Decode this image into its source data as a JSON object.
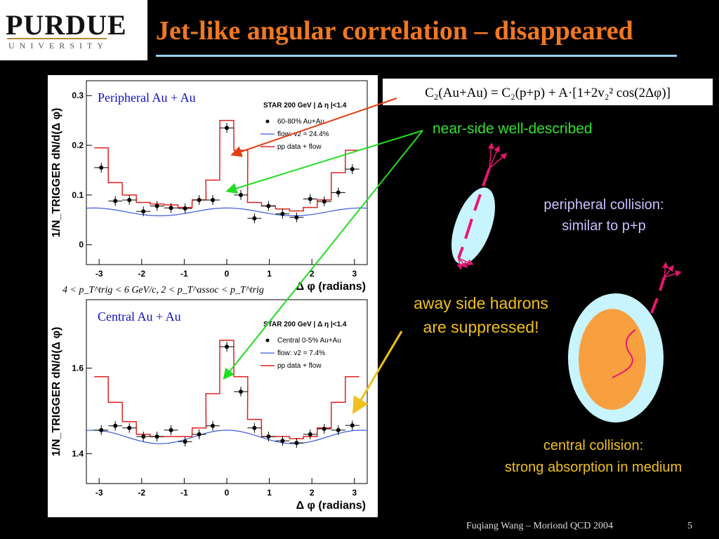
{
  "logo": {
    "main": "PURDUE",
    "sub": "UNIVERSITY"
  },
  "title": "Jet-like angular correlation – disappeared",
  "formula": "C₂(Au+Au) = C₂(p+p) + A·[1+2v₂² cos(2Δφ)]",
  "annotations": {
    "near_side": "near-side well-described",
    "peripheral_1": "peripheral collision:",
    "peripheral_2": "similar to p+p",
    "away_1": "away side hadrons",
    "away_2": "are suppressed!",
    "central_1": "central collision:",
    "central_2": "strong absorption in medium"
  },
  "footer": {
    "author": "Fuqiang Wang – Moriond QCD 2004",
    "page": "5"
  },
  "colors": {
    "title": "#f07820",
    "data": "#000000",
    "flow": "#3a5ad8",
    "pp": "#e02020",
    "near_arrow": "#22dd22",
    "away_arrow": "#f0c020",
    "formula_arrow": "#e04010"
  },
  "chart_data": [
    {
      "type": "scatter",
      "title": "Peripheral Au + Au",
      "xlabel": "Δ φ (radians)",
      "ylabel": "1/N_TRIGGER dN/d(Δ φ)",
      "xlim": [
        -3.3,
        3.3
      ],
      "ylim": [
        -0.04,
        0.33
      ],
      "xticks": [
        -3,
        -2,
        -1,
        0,
        1,
        2,
        3
      ],
      "yticks": [
        0,
        0.1,
        0.2,
        0.3
      ],
      "legend": {
        "position": "top-right",
        "header": "STAR 200 GeV | Δ η |<1.4",
        "entries": [
          "60-80% Au+Au",
          "flow: v2 = 24.4%",
          "pp data + flow"
        ]
      },
      "cut_label": "4 < p_T^trig < 6 GeV/c, 2 < p_T^assoc < p_T^trig",
      "series": [
        {
          "name": "60-80% Au+Au",
          "x": [
            -2.95,
            -2.62,
            -2.29,
            -1.96,
            -1.64,
            -1.31,
            -0.98,
            -0.65,
            -0.33,
            0.0,
            0.33,
            0.65,
            0.98,
            1.31,
            1.64,
            1.96,
            2.29,
            2.62,
            2.95
          ],
          "y": [
            0.155,
            0.088,
            0.09,
            0.067,
            0.078,
            0.074,
            0.073,
            0.09,
            0.09,
            0.235,
            0.1,
            0.053,
            0.078,
            0.062,
            0.055,
            0.092,
            0.087,
            0.105,
            0.152
          ]
        },
        {
          "name": "flow: v2 = 24.4%",
          "v2": 0.244,
          "baseline": 0.066
        },
        {
          "name": "pp data + flow",
          "y": [
            0.195,
            0.125,
            0.1,
            0.085,
            0.082,
            0.08,
            0.075,
            0.09,
            0.13,
            0.25,
            0.19,
            0.085,
            0.078,
            0.072,
            0.068,
            0.075,
            0.09,
            0.145,
            0.19
          ]
        }
      ]
    },
    {
      "type": "scatter",
      "title": "Central Au + Au",
      "xlabel": "Δ φ (radians)",
      "ylabel": "1/N_TRIGGER dN/d(Δ φ)",
      "xlim": [
        -3.3,
        3.3
      ],
      "ylim": [
        1.33,
        1.76
      ],
      "xticks": [
        -3,
        -2,
        -1,
        0,
        1,
        2,
        3
      ],
      "yticks": [
        1.4,
        1.6
      ],
      "legend": {
        "position": "top-right",
        "header": "STAR 200 GeV | Δ η |<1.4",
        "entries": [
          "Central 0-5% Au+Au",
          "flow: v2 = 7.4%",
          "pp data + flow"
        ]
      },
      "series": [
        {
          "name": "Central 0-5% Au+Au",
          "x": [
            -2.95,
            -2.62,
            -2.29,
            -1.96,
            -1.64,
            -1.31,
            -0.98,
            -0.65,
            -0.33,
            0.0,
            0.33,
            0.65,
            0.98,
            1.31,
            1.64,
            1.96,
            2.29,
            2.62,
            2.95
          ],
          "y": [
            1.455,
            1.465,
            1.46,
            1.44,
            1.44,
            1.455,
            1.428,
            1.445,
            1.465,
            1.65,
            1.545,
            1.46,
            1.44,
            1.43,
            1.425,
            1.445,
            1.458,
            1.455,
            1.466
          ]
        },
        {
          "name": "flow: v2 = 7.4%",
          "v2": 0.074,
          "baseline": 1.439
        },
        {
          "name": "pp data + flow",
          "y": [
            1.58,
            1.52,
            1.475,
            1.445,
            1.44,
            1.44,
            1.44,
            1.46,
            1.54,
            1.665,
            1.58,
            1.48,
            1.44,
            1.44,
            1.435,
            1.44,
            1.46,
            1.52,
            1.58
          ]
        }
      ]
    }
  ]
}
